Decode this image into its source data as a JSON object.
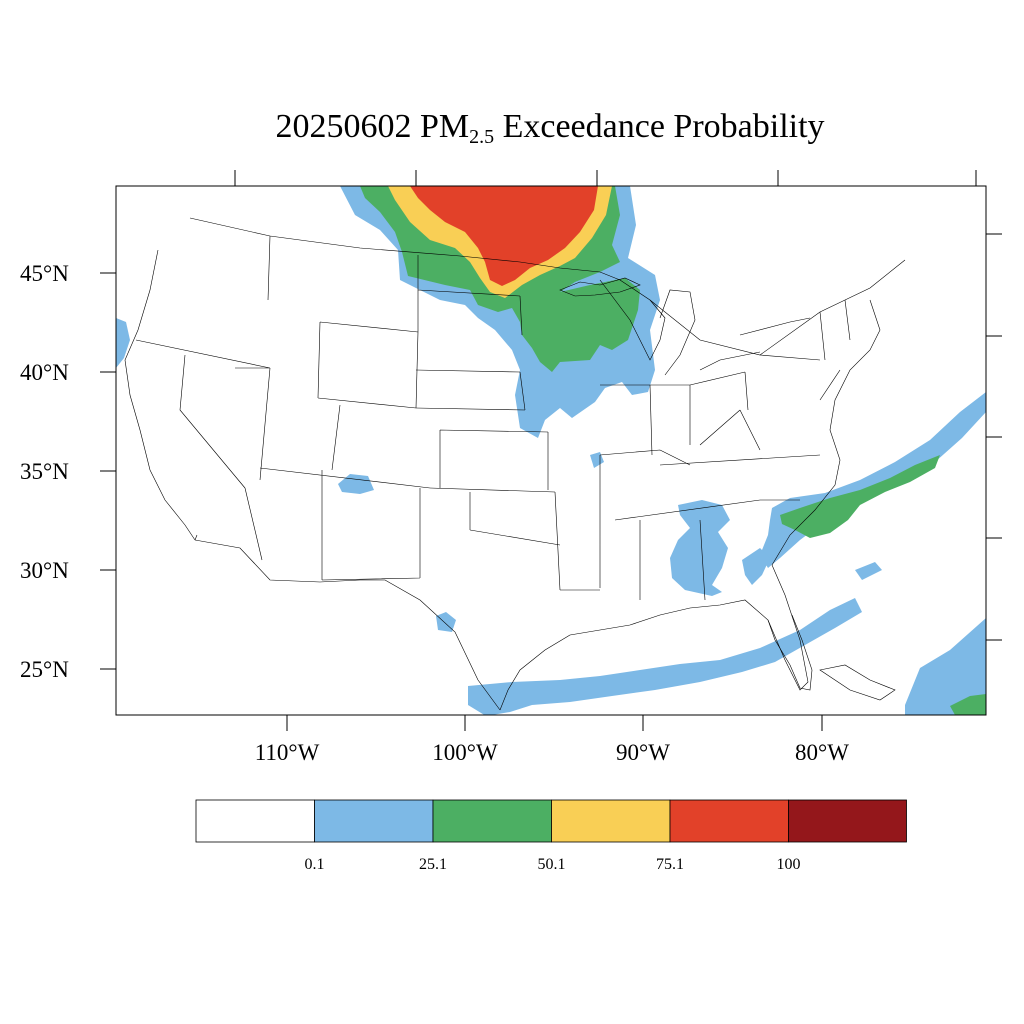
{
  "title": {
    "date": "20250602",
    "pollutant": "PM",
    "pollutant_sub": "2.5",
    "suffix": "Exceedance Probability"
  },
  "axes": {
    "lat_labels": [
      "45°N",
      "40°N",
      "35°N",
      "30°N",
      "25°N"
    ],
    "lon_labels": [
      "110°W",
      "100°W",
      "90°W",
      "80°W"
    ]
  },
  "colorbar": {
    "colors": [
      "#ffffff",
      "#7db9e6",
      "#4caf63",
      "#f9cf55",
      "#e24129",
      "#94171b"
    ],
    "labels": [
      "0.1",
      "25.1",
      "50.1",
      "75.1",
      "100"
    ]
  },
  "fill_colors": {
    "light": "#7db9e6",
    "green": "#4caf63",
    "yellow": "#f9cf55",
    "red": "#e24129"
  }
}
